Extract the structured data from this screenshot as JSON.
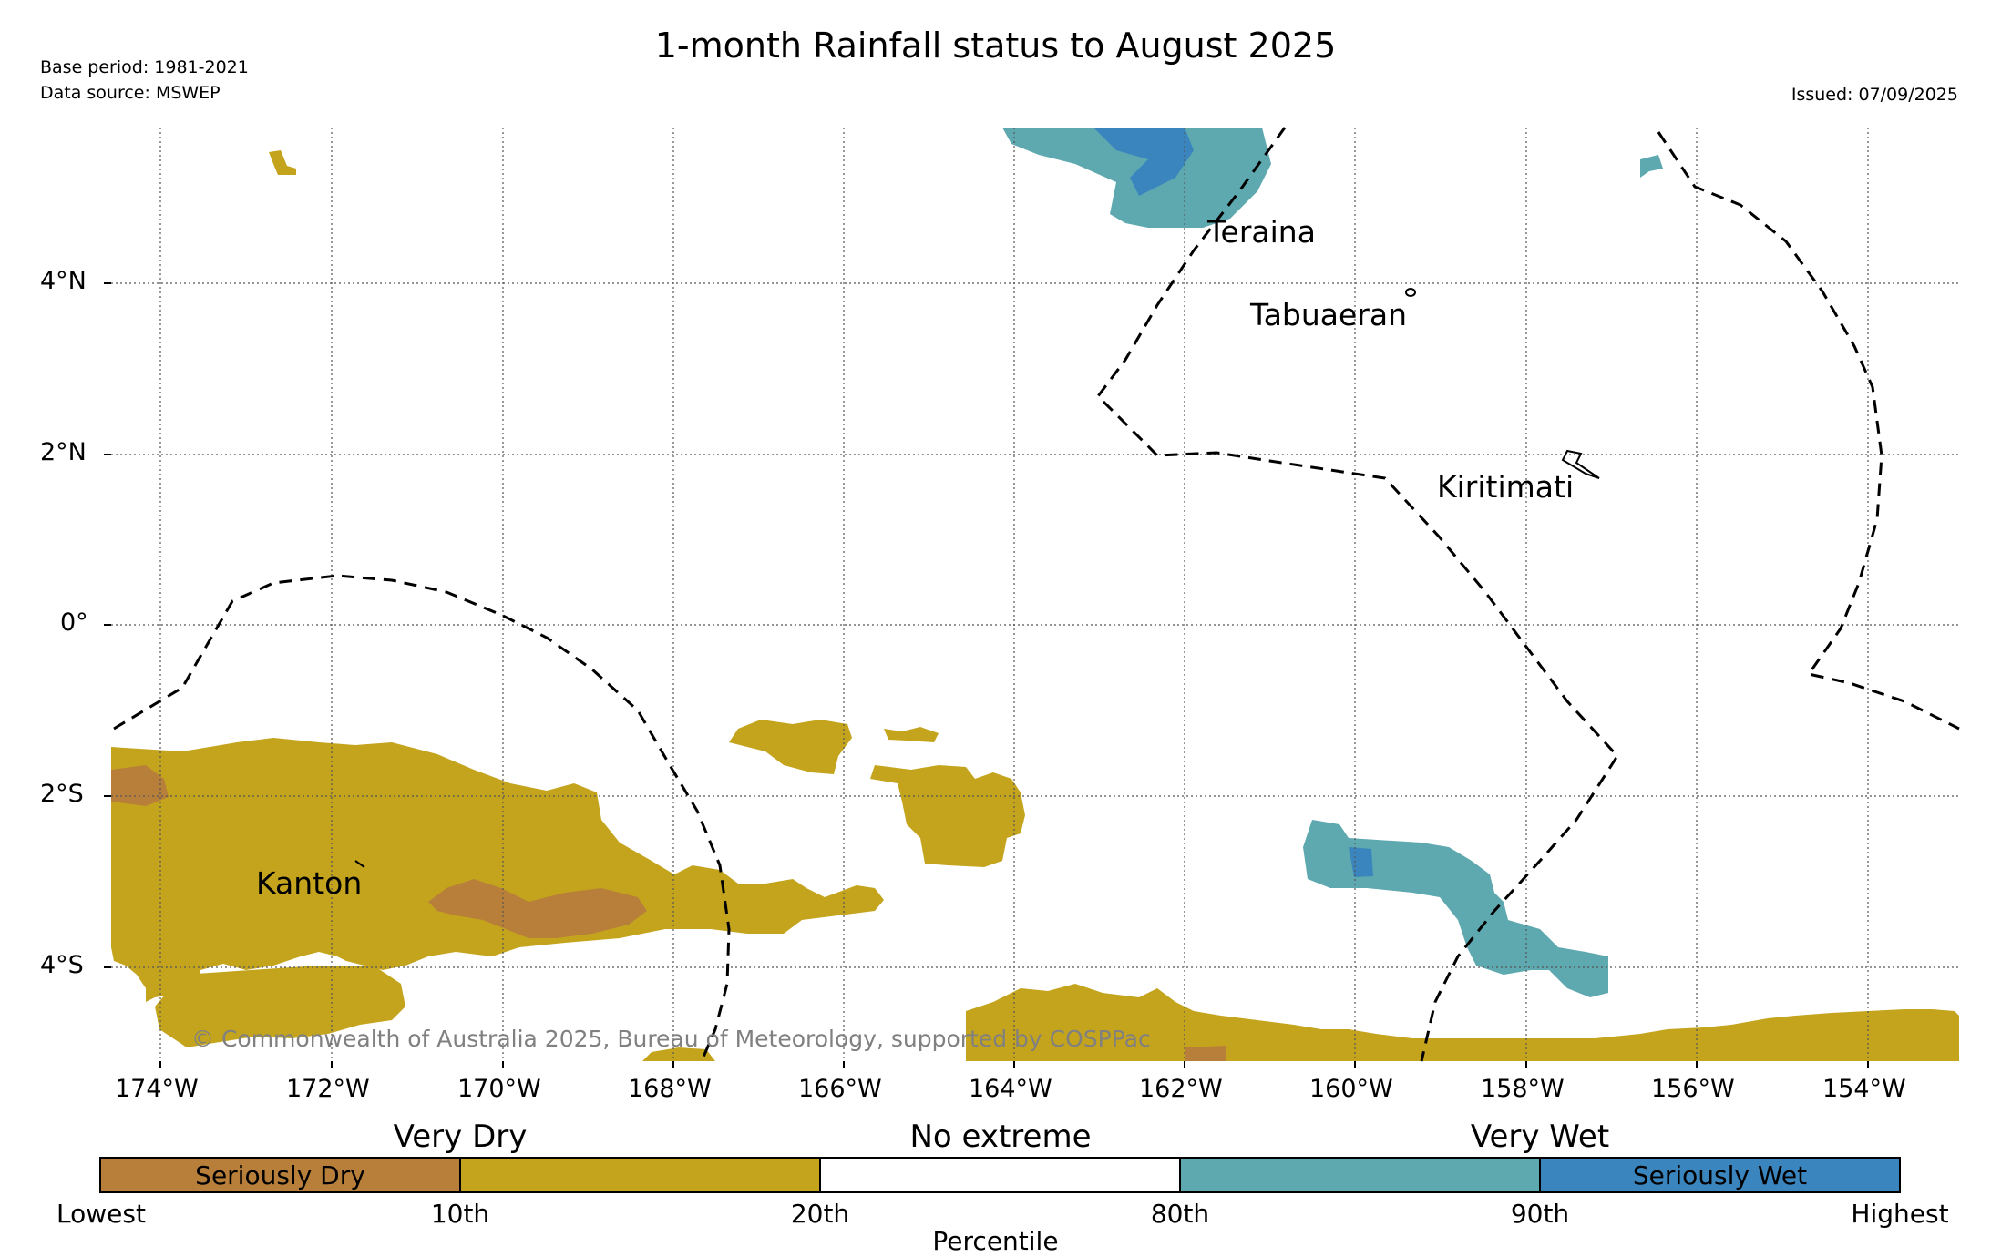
{
  "header": {
    "title": "1-month Rainfall status to August 2025",
    "base_period": "Base period: 1981-2021",
    "data_source": "Data source: MSWEP",
    "issued": "Issued: 07/09/2025"
  },
  "map": {
    "lon_labels": [
      "174°W",
      "172°W",
      "170°W",
      "168°W",
      "166°W",
      "164°W",
      "162°W",
      "160°W",
      "158°W",
      "156°W",
      "154°W"
    ],
    "lat_labels": [
      "4°N",
      "2°N",
      "0°",
      "2°S",
      "4°S"
    ],
    "places": {
      "teraina": "Teraina",
      "tabuaeran": "Tabuaeran",
      "kiritimati": "Kiritimati",
      "kanton": "Kanton"
    },
    "copyright": "© Commonwealth of Australia 2025, Bureau of Meteorology, supported by COSPPac"
  },
  "legend": {
    "categories": {
      "very_dry": "Very Dry",
      "no_extreme": "No extreme",
      "very_wet": "Very Wet"
    },
    "segments": [
      {
        "label": "Seriously Dry",
        "color": "#b87f3a"
      },
      {
        "label": "",
        "color": "#c4a41c"
      },
      {
        "label": "",
        "color": "#ffffff"
      },
      {
        "label": "",
        "color": "#5ea8b0"
      },
      {
        "label": "Seriously Wet",
        "color": "#3a85bd"
      }
    ],
    "percentiles": [
      "Lowest",
      "10th",
      "20th",
      "80th",
      "90th",
      "Highest"
    ],
    "axis_title": "Percentile"
  }
}
